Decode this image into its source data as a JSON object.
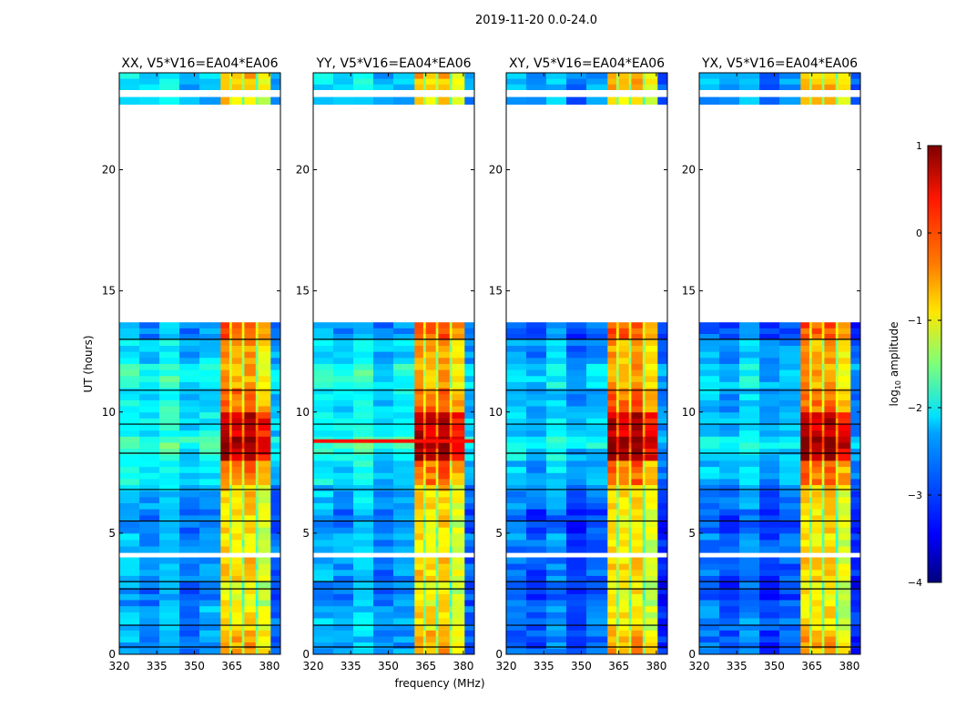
{
  "chart_data": {
    "type": "heatmap",
    "title": "2019-11-20 0.0-24.0",
    "xlabel": "frequency (MHz)",
    "ylabel": "UT (hours)",
    "xlim": [
      320,
      384.4
    ],
    "ylim": [
      0,
      24
    ],
    "xticks": [
      "320",
      "335",
      "350",
      "365",
      "380"
    ],
    "xtick_values": [
      320,
      335,
      350,
      365,
      380
    ],
    "yticks": [
      "0",
      "5",
      "10",
      "15",
      "20"
    ],
    "ytick_values": [
      0,
      5,
      10,
      15,
      20
    ],
    "colorbar": {
      "label": "log10 amplitude",
      "label_main": "log",
      "label_sub": "10",
      "label_rest": " amplitude",
      "colormap": "jet",
      "range": [
        -4,
        1
      ],
      "ticks": [
        "1",
        "0",
        "−1",
        "−2",
        "−3",
        "−4"
      ],
      "tick_values": [
        1,
        0,
        -1,
        -2,
        -3,
        -4
      ]
    },
    "panels": [
      {
        "title": "XX, V5*V16=EA04*EA06",
        "bg_offset": 0.0,
        "extra_line": null
      },
      {
        "title": "YY, V5*V16=EA04*EA06",
        "bg_offset": 0.0,
        "extra_line": {
          "t": 8.8,
          "value": 0.3
        }
      },
      {
        "title": "XY, V5*V16=EA04*EA06",
        "bg_offset": -0.3,
        "extra_line": null
      },
      {
        "title": "YX, V5*V16=EA04*EA06",
        "bg_offset": -0.3,
        "extra_line": null
      }
    ],
    "time_rows": [
      [
        0,
        1,
        -2.6,
        -0.6
      ],
      [
        1,
        2,
        -2.5,
        -0.9
      ],
      [
        2,
        3,
        -2.7,
        -1.0
      ],
      [
        3,
        4,
        -2.6,
        -0.8
      ],
      [
        4,
        4.2,
        null,
        null
      ],
      [
        4.2,
        5,
        -2.5,
        -0.9
      ],
      [
        5,
        6,
        -2.7,
        -0.9
      ],
      [
        6,
        7,
        -2.5,
        -0.8
      ],
      [
        7,
        8,
        -2.2,
        -0.3
      ],
      [
        8,
        8.5,
        -2.0,
        0.6
      ],
      [
        8.5,
        9,
        -1.8,
        0.8
      ],
      [
        9,
        10,
        -2.1,
        0.5
      ],
      [
        10,
        11,
        -2.2,
        -0.3
      ],
      [
        11,
        12,
        -2.0,
        -0.6
      ],
      [
        12,
        13,
        -2.3,
        -0.6
      ],
      [
        13,
        13.7,
        -2.6,
        -0.2
      ],
      [
        13.7,
        22.7,
        null,
        null
      ],
      [
        22.7,
        23.0,
        -2.4,
        -0.8
      ],
      [
        23.0,
        23.3,
        null,
        null
      ],
      [
        23.3,
        24,
        -2.3,
        -0.7
      ]
    ],
    "freq_columns": [
      [
        320,
        328,
        "bg",
        0.1
      ],
      [
        328,
        336,
        "bg",
        -0.1
      ],
      [
        336,
        344,
        "bg",
        0.2
      ],
      [
        344,
        352,
        "bg",
        -0.2
      ],
      [
        352,
        360.5,
        "bg",
        0.0
      ],
      [
        360.5,
        364,
        "band",
        0.2
      ],
      [
        364,
        365,
        "band",
        -0.6
      ],
      [
        365,
        369,
        "band",
        0.1
      ],
      [
        369,
        370,
        "band",
        -0.7
      ],
      [
        370,
        374.5,
        "band",
        0.2
      ],
      [
        374.5,
        375.5,
        "band",
        -0.8
      ],
      [
        375.5,
        380.5,
        "band",
        -0.2
      ],
      [
        380.5,
        384.4,
        "bg",
        -0.3
      ]
    ],
    "flag_lines": [
      0.3,
      1.2,
      2.7,
      3.0,
      5.5,
      6.8,
      8.3,
      9.5,
      10.9,
      13.0
    ]
  }
}
